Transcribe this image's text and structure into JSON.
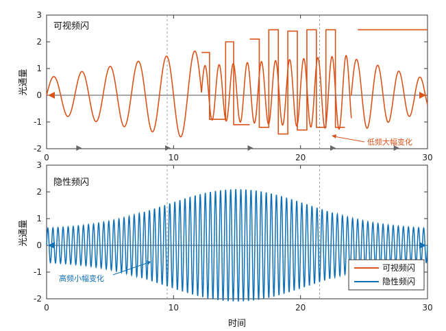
{
  "colors": {
    "visible": "#d95319",
    "invisible": "#0f6fb5",
    "axis": "#333333",
    "guide": "#888888",
    "zero_line": "#8a8a8a"
  },
  "chart_data": [
    {
      "type": "line",
      "title": "可视频闪",
      "xlabel": "",
      "ylabel": "光通量",
      "xlim": [
        0,
        30
      ],
      "ylim": [
        -2,
        3
      ],
      "xticks": [
        0,
        10,
        20,
        30
      ],
      "yticks": [
        -2,
        -1,
        0,
        1,
        2,
        3
      ],
      "grid": false,
      "dashed_verticals_x": [
        9.5,
        21.5
      ],
      "series": [
        {
          "name": "可视频闪",
          "segments": [
            {
              "kind": "sine",
              "t0": 0,
              "t1": 12.2,
              "freq": 0.45,
              "amp_start": 0.65,
              "amp_end": 1.7,
              "offset": 0
            },
            {
              "kind": "square",
              "t0": 12.2,
              "t1": 16.0,
              "levels": [
                1.6,
                -0.9,
                -0.9,
                2.0,
                -1.1,
                -1.1
              ]
            },
            {
              "kind": "sine",
              "t0": 12.2,
              "t1": 24.0,
              "freq": 0.9,
              "amp_start": 1.0,
              "amp_end": 1.4,
              "offset": 0.1
            },
            {
              "kind": "square",
              "t0": 16.0,
              "t1": 23.5,
              "levels": [
                2.1,
                -1.2,
                2.45,
                -1.45,
                2.4,
                -1.3,
                2.45,
                -1.2,
                2.45,
                -1.2
              ]
            },
            {
              "kind": "sine",
              "t0": 24.0,
              "t1": 30,
              "freq": 0.6,
              "amp_start": 1.4,
              "amp_end": 0.6,
              "offset": 0
            },
            {
              "kind": "flat",
              "t0": 24.5,
              "t1": 30,
              "value": 2.45
            }
          ]
        }
      ],
      "annotations": [
        {
          "text": "低频大幅变化",
          "x": 24.5,
          "y": -1.4
        }
      ]
    },
    {
      "type": "line",
      "title": "隐性频闪",
      "xlabel": "时间",
      "ylabel": "光通量",
      "xlim": [
        0,
        30
      ],
      "ylim": [
        -2,
        3
      ],
      "xticks": [
        0,
        10,
        20,
        30
      ],
      "yticks": [
        -2,
        -1,
        0,
        1,
        2,
        3
      ],
      "grid": false,
      "dashed_verticals_x": [
        9.5,
        21.5
      ],
      "series": [
        {
          "name": "隐性频闪",
          "envelope": {
            "center": 15,
            "peak_amp": 2.1,
            "edge_amp": 0.6,
            "width": 8
          },
          "freq": 2.5,
          "offset": 0
        }
      ],
      "annotations": [
        {
          "text": "高频小幅变化",
          "x": 5.2,
          "y": -1.95
        }
      ],
      "legend": {
        "placement": "bottom-right",
        "entries": [
          "可视频闪",
          "隐性频闪"
        ]
      }
    }
  ]
}
